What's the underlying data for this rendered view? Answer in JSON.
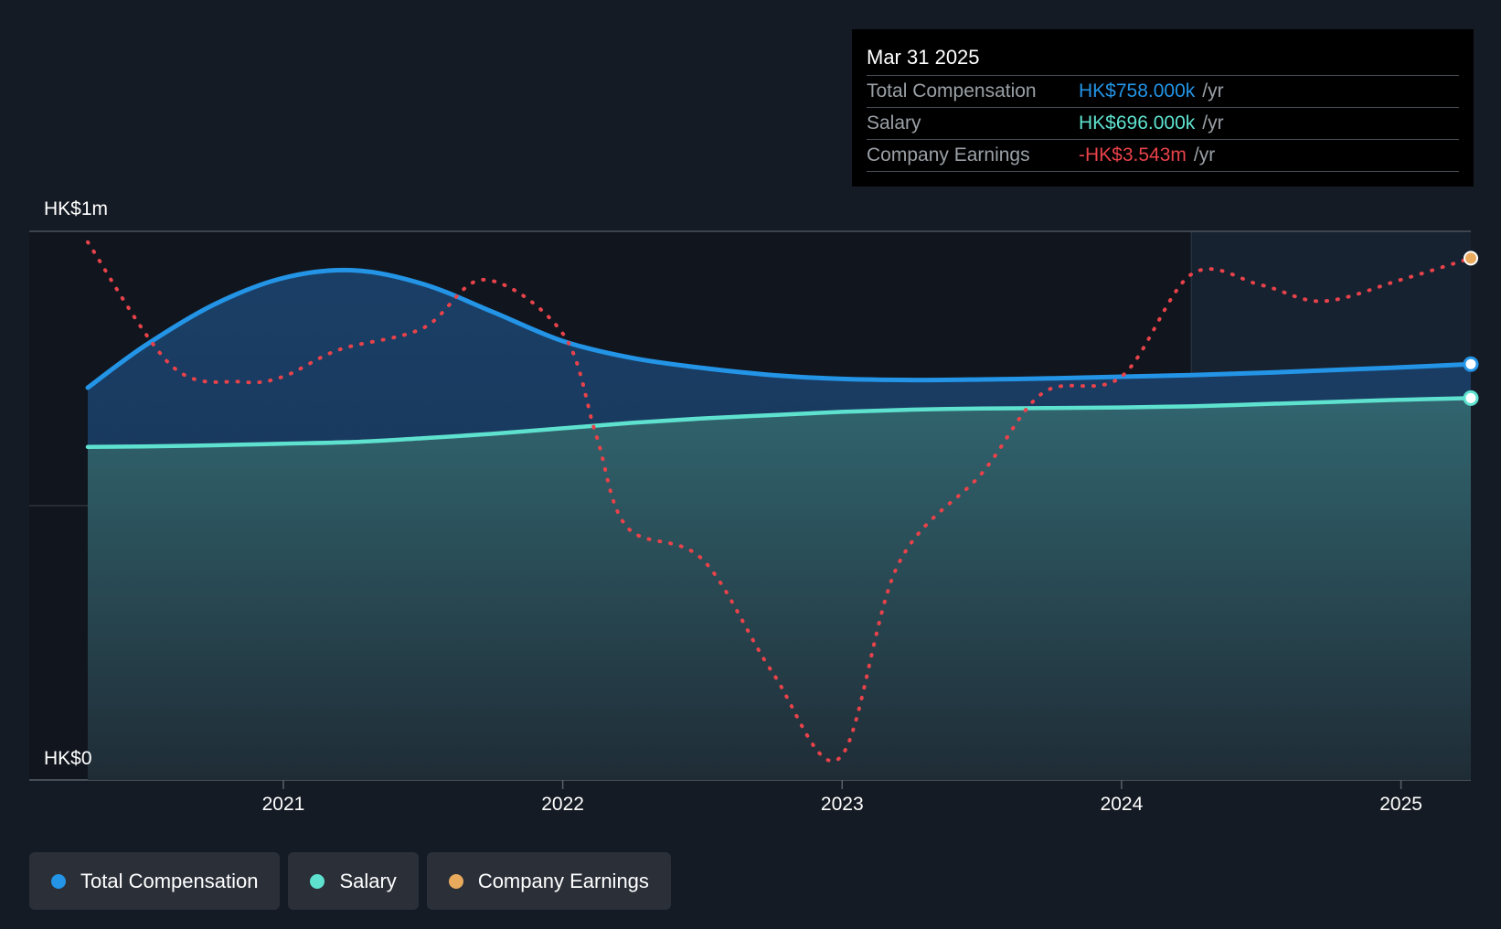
{
  "colors": {
    "background": "#151b24",
    "total_compensation": "#2394e6",
    "salary": "#5ee2cf",
    "company_earnings": "#e8424a",
    "earnings_marker": "#e9aa5e",
    "grid": "#3a4049"
  },
  "tooltip": {
    "date": "Mar 31 2025",
    "rows": [
      {
        "label": "Total Compensation",
        "value": "HK$758.000k",
        "unit": "/yr",
        "color": "#2394e6"
      },
      {
        "label": "Salary",
        "value": "HK$696.000k",
        "unit": "/yr",
        "color": "#5ee2cf"
      },
      {
        "label": "Company Earnings",
        "value": "-HK$3.543m",
        "unit": "/yr",
        "color": "#e8424a"
      }
    ]
  },
  "legend": [
    {
      "label": "Total Compensation",
      "color": "#2394e6"
    },
    {
      "label": "Salary",
      "color": "#5ee2cf"
    },
    {
      "label": "Company Earnings",
      "color": "#e9aa5e"
    }
  ],
  "chart_data": {
    "type": "area",
    "title": "",
    "xlabel": "",
    "ylabel": "",
    "y_tick_labels": [
      "HK$1m",
      "HK$0"
    ],
    "ylim": [
      0,
      1000
    ],
    "y_unit": "HK$k",
    "xlim": [
      2020.3,
      2025.25
    ],
    "x_ticks": [
      2021,
      2022,
      2023,
      2024,
      2025
    ],
    "x_tick_labels": [
      "2021",
      "2022",
      "2023",
      "2024",
      "2025"
    ],
    "grid": true,
    "legend_position": "bottom-left",
    "forecast_region_start": 2024.25,
    "series": [
      {
        "name": "Total Compensation",
        "style": "solid-area",
        "x": [
          2020.3,
          2020.5,
          2020.75,
          2021.0,
          2021.25,
          2021.5,
          2021.75,
          2022.0,
          2022.25,
          2022.5,
          2022.75,
          2023.0,
          2023.25,
          2023.5,
          2023.75,
          2024.0,
          2024.25,
          2024.5,
          2024.75,
          2025.0,
          2025.25
        ],
        "values": [
          715,
          790,
          866,
          915,
          929,
          904,
          853,
          800,
          769,
          751,
          738,
          731,
          729,
          730,
          732,
          735,
          738,
          742,
          747,
          752,
          758
        ]
      },
      {
        "name": "Salary",
        "style": "solid-area",
        "x": [
          2020.3,
          2020.5,
          2020.75,
          2021.0,
          2021.25,
          2021.5,
          2021.75,
          2022.0,
          2022.25,
          2022.5,
          2022.75,
          2023.0,
          2023.25,
          2023.5,
          2023.75,
          2024.0,
          2024.25,
          2024.5,
          2024.75,
          2025.0,
          2025.25
        ],
        "values": [
          607,
          608,
          610,
          613,
          616,
          623,
          631,
          641,
          651,
          659,
          665,
          671,
          675,
          677,
          678,
          679,
          681,
          685,
          689,
          693,
          696
        ]
      },
      {
        "name": "Company Earnings",
        "style": "dotted",
        "scale": "independent",
        "x": [
          2020.3,
          2020.6,
          2020.85,
          2021.0,
          2021.2,
          2021.5,
          2021.72,
          2022.0,
          2022.12,
          2022.23,
          2022.5,
          2022.75,
          2022.99,
          2023.2,
          2023.5,
          2023.72,
          2024.0,
          2024.25,
          2024.5,
          2024.72,
          2025.0,
          2025.25
        ],
        "values": [
          0.98,
          0.75,
          0.72,
          0.73,
          0.78,
          0.82,
          0.91,
          0.81,
          0.62,
          0.45,
          0.39,
          0.18,
          0.02,
          0.38,
          0.55,
          0.7,
          0.73,
          0.92,
          0.9,
          0.87,
          0.91,
          0.95
        ]
      }
    ]
  }
}
